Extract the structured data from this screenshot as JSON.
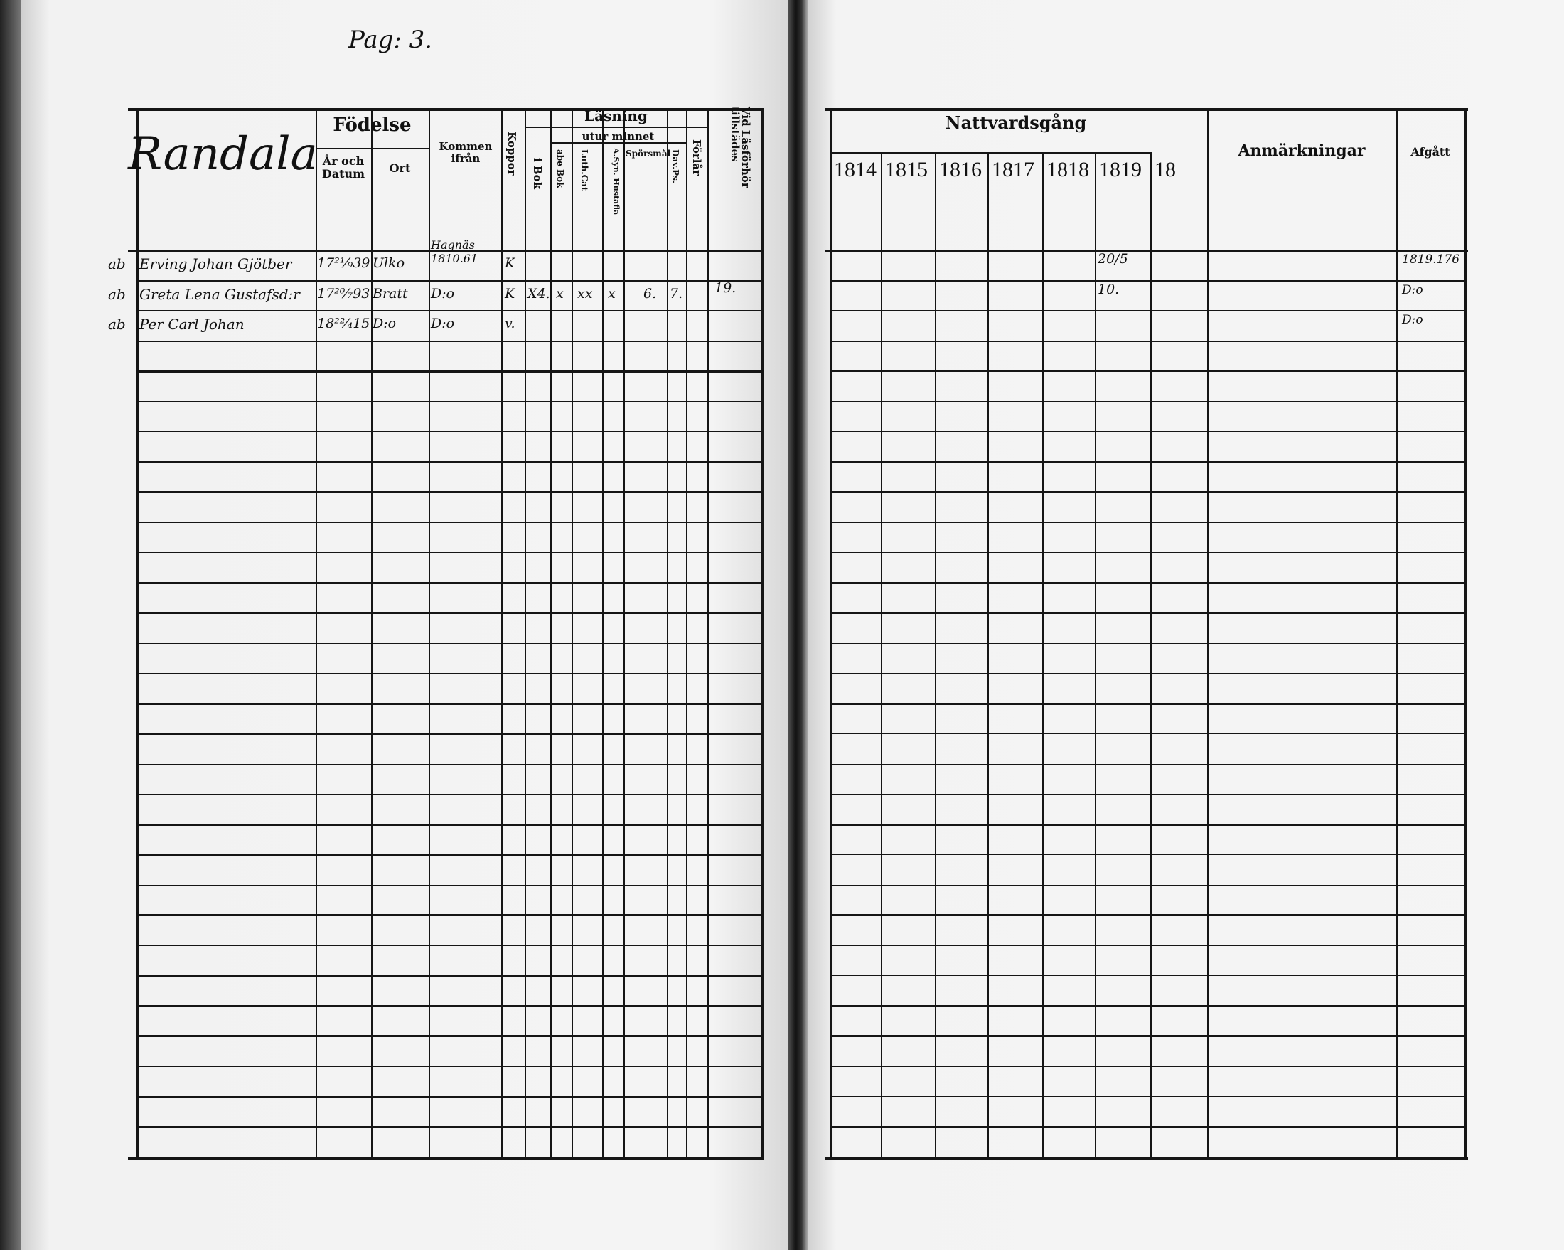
{
  "page_label": "Pag: 3.",
  "left": {
    "village": "Randala",
    "headers": {
      "fodelse": "Födelse",
      "ar_och_datum": "År och Datum",
      "ort": "Ort",
      "kommen_ifran": "Kommen ifrån",
      "koppor": "Koppor",
      "lasning": "Läsning",
      "i_bok": "i Bok",
      "utur_minnet": "utur minnet",
      "abe_bok": "abe Bok",
      "luth_cat": "Luth.Cat",
      "a_syn_hustafla": "A.Syn. Hustafla",
      "sporsmal": "Spörsmål",
      "dav_ps": "Dav.Ps.",
      "forlar": "Förlår",
      "vid_lasforhor": "Vid Läsförhör tillstädes"
    },
    "rows": [
      {
        "prefix": "ab",
        "name": "Erving Johan Gjötber",
        "birth": "17²¹⁄₉39",
        "ort": "Ulko",
        "kommen": "Hagnäs 1810.61",
        "koppor": "K",
        "i_bok": "",
        "abe": "",
        "luth": "",
        "asyn": "",
        "sporsmal": "",
        "dav": "",
        "forlar": "",
        "vid": ""
      },
      {
        "prefix": "ab",
        "name": "Greta Lena Gustafsd:r",
        "birth": "17²⁰⁄₇93",
        "ort": "Bratt",
        "kommen": "D:o",
        "koppor": "K",
        "i_bok": "X4.",
        "abe": "x",
        "luth": "xx",
        "asyn": "x",
        "sporsmal": "6.",
        "dav": "7.",
        "forlar": "",
        "vid": "19."
      },
      {
        "prefix": "ab",
        "name": "Per Carl Johan",
        "birth": "18²²⁄₄15",
        "ort": "D:o",
        "kommen": "D:o",
        "koppor": "v.",
        "i_bok": "",
        "abe": "",
        "luth": "",
        "asyn": "",
        "sporsmal": "",
        "dav": "",
        "forlar": "",
        "vid": ""
      }
    ]
  },
  "right": {
    "headers": {
      "nattvardsgang": "Nattvardsgång",
      "anmarkningar": "Anmärkningar",
      "afgatt": "Afgått"
    },
    "years": [
      "1814",
      "1815",
      "1816",
      "1817",
      "1818",
      "1819",
      "18"
    ],
    "rows": [
      {
        "y1819": "20/5",
        "afgatt": "1819.176"
      },
      {
        "y1819": "10.",
        "afgatt": "D:o"
      },
      {
        "y1819": "",
        "afgatt": "D:o"
      }
    ]
  }
}
